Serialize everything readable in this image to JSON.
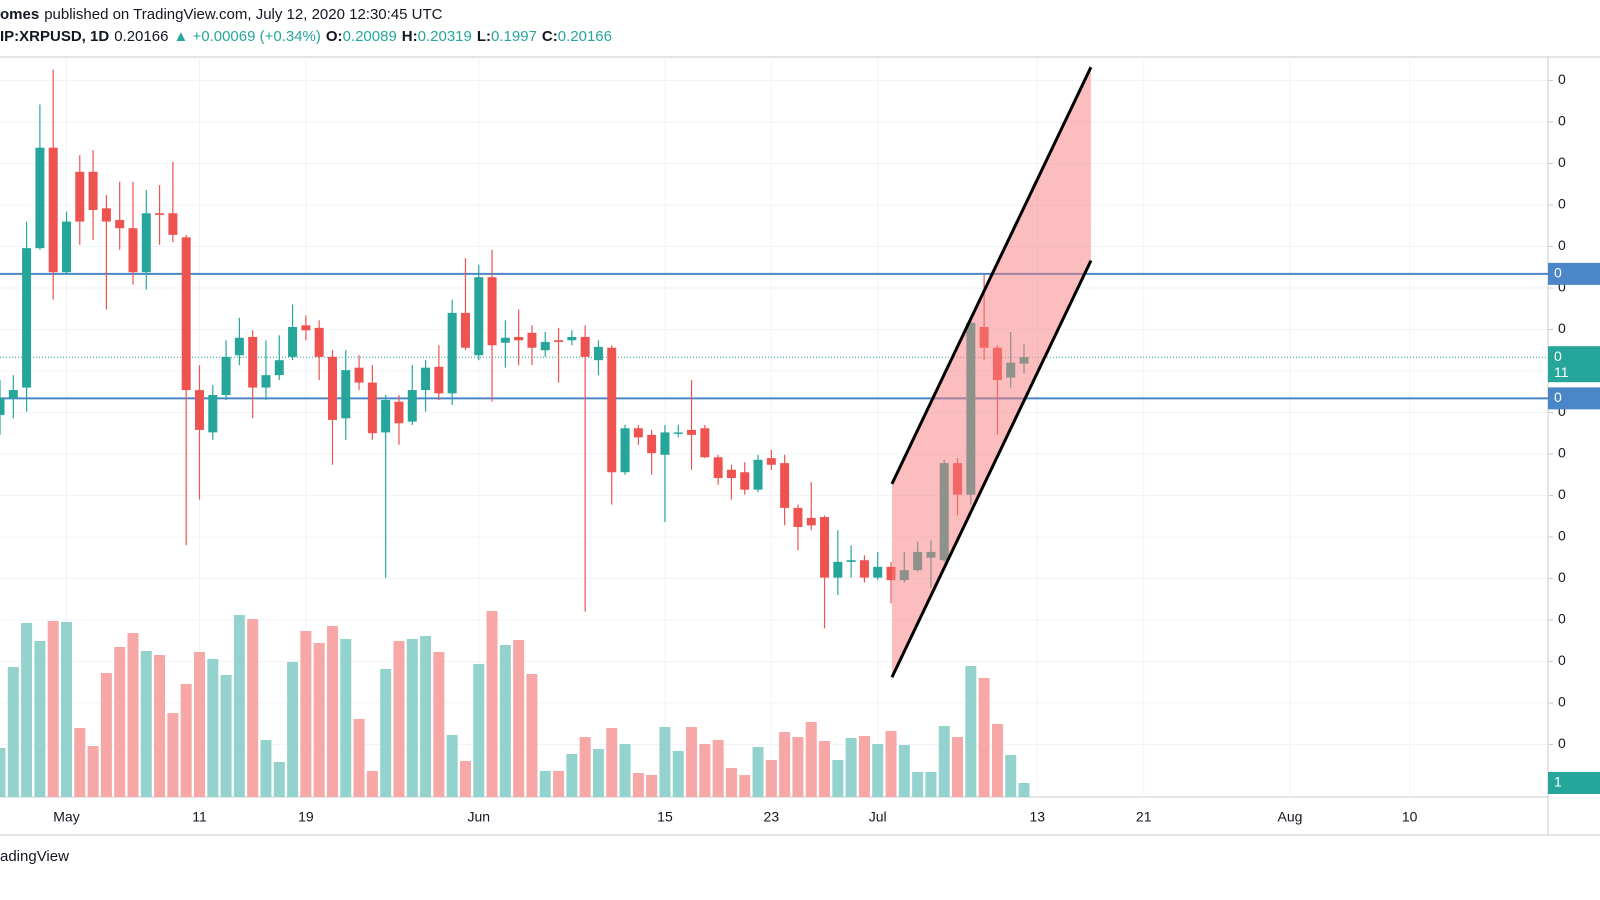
{
  "header": {
    "author": "omes",
    "published": "published on TradingView.com, July 12, 2020 12:30:45 UTC",
    "symbol": "IP:XRPUSD, 1D",
    "change": "▲ +0.00069 (+0.34%)",
    "ohlc_labels": [
      "O:",
      "H:",
      "L:",
      "C:"
    ]
  },
  "footer": "adingView",
  "chart_data": {
    "type": "candlestick",
    "xlim": [
      0,
      116.4
    ],
    "ylim": [
      0.14867,
      0.23783
    ],
    "volume_lim": [
      0,
      200
    ],
    "xticks": [
      {
        "value": 5,
        "label": "May"
      },
      {
        "value": 15,
        "label": "11"
      },
      {
        "value": 23,
        "label": "19"
      },
      {
        "value": 36,
        "label": "Jun"
      },
      {
        "value": 50,
        "label": "15"
      },
      {
        "value": 58,
        "label": "23"
      },
      {
        "value": 66,
        "label": "Jul"
      },
      {
        "value": 78,
        "label": "13"
      },
      {
        "value": 86,
        "label": "21"
      },
      {
        "value": 97,
        "label": "Aug"
      },
      {
        "value": 106,
        "label": "10"
      }
    ],
    "yticks": [
      {
        "value": 0.235,
        "label": "0"
      },
      {
        "value": 0.23,
        "label": "0"
      },
      {
        "value": 0.225,
        "label": "0"
      },
      {
        "value": 0.22,
        "label": "0"
      },
      {
        "value": 0.215,
        "label": "0"
      },
      {
        "value": 0.21,
        "label": "0"
      },
      {
        "value": 0.205,
        "label": "0"
      },
      {
        "value": 0.2,
        "label": "0"
      },
      {
        "value": 0.195,
        "label": "0"
      },
      {
        "value": 0.19,
        "label": "0"
      },
      {
        "value": 0.185,
        "label": "0"
      },
      {
        "value": 0.18,
        "label": "0"
      },
      {
        "value": 0.175,
        "label": "0"
      },
      {
        "value": 0.17,
        "label": "0"
      },
      {
        "value": 0.165,
        "label": "0"
      },
      {
        "value": 0.16,
        "label": "0"
      },
      {
        "value": 0.155,
        "label": "0"
      }
    ],
    "grid": true,
    "up_color": "#26a69a",
    "down_color": "#ef5350",
    "volume_up_color": "#94d3cd",
    "volume_down_color": "#f7a7a5",
    "open": [
      0.1947,
      0.1967,
      0.198,
      0.2148,
      0.2269,
      0.2119,
      0.224,
      0.224,
      0.2196,
      0.2182,
      0.2172,
      0.2119,
      0.219,
      0.219,
      0.2161,
      0.1977,
      0.1926,
      0.1971,
      0.2019,
      0.2041,
      0.198,
      0.1995,
      0.2017,
      0.2055,
      0.2052,
      0.2017,
      0.1943,
      0.2004,
      0.1986,
      0.1926,
      0.1963,
      0.1939,
      0.1977,
      0.2005,
      0.1973,
      0.207,
      0.2019,
      0.2113,
      0.2034,
      0.2041,
      0.2046,
      0.2025,
      0.2037,
      0.2037,
      0.2041,
      0.2013,
      0.2028,
      0.1878,
      0.1931,
      0.1923,
      0.1899,
      0.1925,
      0.1929,
      0.1931,
      0.1896,
      0.1881,
      0.1878,
      0.1857,
      0.1895,
      0.1889,
      0.1835,
      0.1823,
      0.1824,
      0.1751,
      0.177,
      0.1772,
      0.1751,
      0.1764,
      0.1748,
      0.176,
      0.1775,
      0.1772,
      0.1889,
      0.1851,
      0.2053,
      0.2028,
      0.1992,
      0.20089
    ],
    "high": [
      0.1989,
      0.1995,
      0.218,
      0.2321,
      0.2363,
      0.2192,
      0.226,
      0.2266,
      0.2212,
      0.2228,
      0.2228,
      0.2218,
      0.2224,
      0.2252,
      0.2164,
      0.2007,
      0.1983,
      0.2037,
      0.2064,
      0.2049,
      0.2037,
      0.2043,
      0.208,
      0.2067,
      0.2061,
      0.2025,
      0.2025,
      0.2019,
      0.2007,
      0.1971,
      0.1971,
      0.2007,
      0.2013,
      0.2031,
      0.2086,
      0.2136,
      0.2128,
      0.2146,
      0.2061,
      0.2074,
      0.2055,
      0.2047,
      0.2052,
      0.2049,
      0.2055,
      0.2037,
      0.2031,
      0.1935,
      0.1935,
      0.1929,
      0.1935,
      0.1935,
      0.1989,
      0.1935,
      0.1899,
      0.1887,
      0.189,
      0.1899,
      0.1905,
      0.1899,
      0.1839,
      0.1866,
      0.1826,
      0.1808,
      0.179,
      0.1778,
      0.1782,
      0.177,
      0.1782,
      0.1794,
      0.1796,
      0.1893,
      0.1895,
      0.2064,
      0.2116,
      0.2031,
      0.2047,
      0.20319
    ],
    "low": [
      0.1923,
      0.1943,
      0.1951,
      0.2146,
      0.2086,
      0.2116,
      0.2152,
      0.2158,
      0.2074,
      0.2146,
      0.2104,
      0.2098,
      0.2152,
      0.2155,
      0.179,
      0.1845,
      0.1917,
      0.1965,
      0.2007,
      0.1943,
      0.1965,
      0.1989,
      0.2013,
      0.2037,
      0.1989,
      0.1887,
      0.1917,
      0.1977,
      0.1917,
      0.1751,
      0.1911,
      0.1935,
      0.1951,
      0.1965,
      0.1959,
      0.2025,
      0.2013,
      0.1963,
      0.2004,
      0.2007,
      0.2007,
      0.2017,
      0.1986,
      0.2031,
      0.171,
      0.1995,
      0.1839,
      0.1875,
      0.1911,
      0.1875,
      0.1818,
      0.192,
      0.1881,
      0.1895,
      0.1863,
      0.1845,
      0.1851,
      0.1854,
      0.1881,
      0.1814,
      0.1784,
      0.1808,
      0.169,
      0.173,
      0.1751,
      0.1745,
      0.1748,
      0.172,
      0.1745,
      0.1758,
      0.1739,
      0.177,
      0.1826,
      0.1839,
      0.2013,
      0.1923,
      0.198,
      0.1997
    ],
    "close": [
      0.1967,
      0.1977,
      0.2148,
      0.2269,
      0.2119,
      0.218,
      0.218,
      0.2194,
      0.218,
      0.2172,
      0.2119,
      0.219,
      0.2188,
      0.2164,
      0.1977,
      0.1929,
      0.1971,
      0.2017,
      0.204,
      0.198,
      0.1995,
      0.2013,
      0.2053,
      0.2049,
      0.2017,
      0.1941,
      0.2001,
      0.1986,
      0.1925,
      0.1965,
      0.1937,
      0.1977,
      0.2004,
      0.1973,
      0.207,
      0.2028,
      0.2113,
      0.2031,
      0.204,
      0.2037,
      0.2028,
      0.2035,
      0.2035,
      0.2041,
      0.2017,
      0.2029,
      0.1878,
      0.1931,
      0.192,
      0.1901,
      0.1926,
      0.1926,
      0.1923,
      0.1896,
      0.1871,
      0.1871,
      0.1857,
      0.1893,
      0.1887,
      0.1835,
      0.1812,
      0.1814,
      0.1751,
      0.177,
      0.1772,
      0.1751,
      0.1764,
      0.1748,
      0.176,
      0.1782,
      0.1782,
      0.1889,
      0.1851,
      0.2058,
      0.2028,
      0.1989,
      0.201,
      0.20166
    ],
    "volume": [
      49,
      130,
      174,
      156,
      176,
      175,
      69,
      51,
      124,
      150,
      164,
      146,
      142,
      84,
      113,
      145,
      138,
      122,
      182,
      178,
      57,
      35,
      135,
      166,
      154,
      171,
      158,
      78,
      26,
      128,
      156,
      158,
      161,
      145,
      62,
      36,
      133,
      186,
      152,
      157,
      123,
      26,
      26,
      43,
      60,
      48,
      69,
      53,
      24,
      22,
      70,
      46,
      70,
      53,
      57,
      29,
      22,
      50,
      37,
      65,
      60,
      75,
      56,
      37,
      59,
      61,
      53,
      66,
      52,
      25,
      25,
      71,
      60,
      131,
      119,
      73,
      42,
      14
    ],
    "hlines": [
      {
        "value": 0.2117,
        "label": "0"
      },
      {
        "value": 0.1967,
        "label": "0"
      }
    ],
    "hline_color": "#4a86c8",
    "last_price_label": "0",
    "countdown": "11",
    "volume_label": "1",
    "channel": {
      "x": [
        67.07,
        82.03
      ],
      "upper": [
        0.1864,
        0.2366
      ],
      "lower": [
        0.1631,
        0.2133
      ],
      "color": "#f77b7b"
    }
  }
}
